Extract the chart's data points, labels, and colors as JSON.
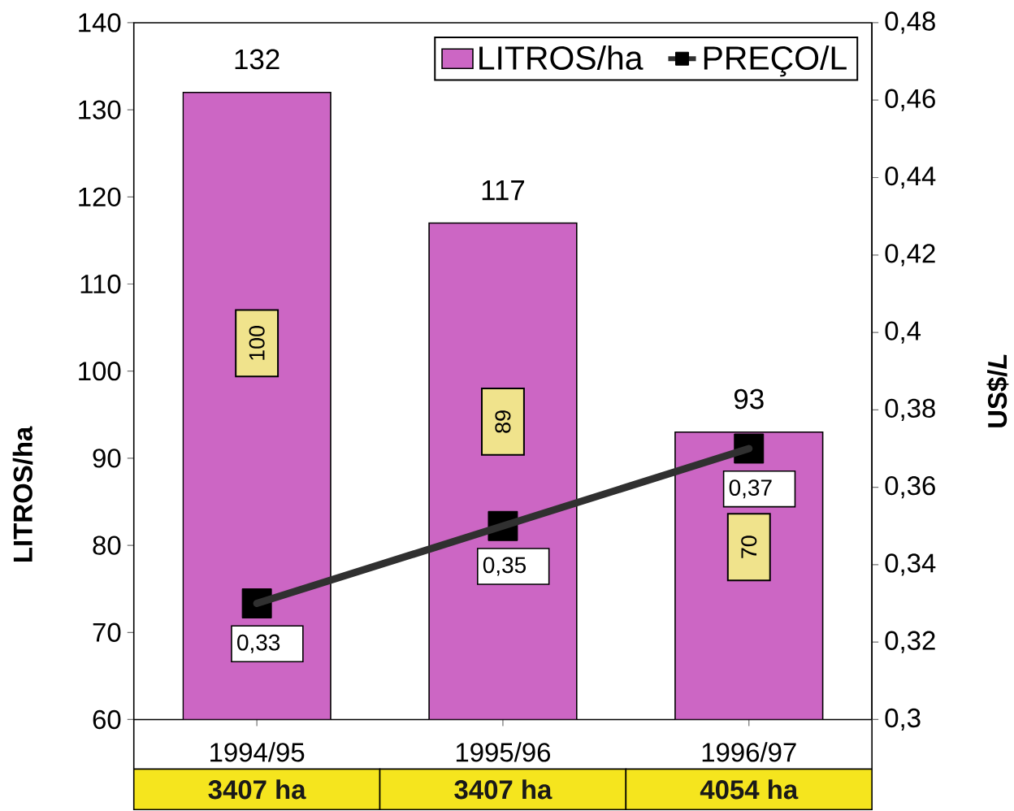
{
  "chart_data": {
    "type": "bar",
    "categories": [
      "1994/95",
      "1995/96",
      "1996/97"
    ],
    "series": [
      {
        "name": "LITROS/ha",
        "color": "#cc66c4",
        "values": [
          132,
          117,
          93
        ],
        "value_labels": [
          "132",
          "117",
          "93"
        ]
      },
      {
        "name": "PREÇO/L",
        "type": "line",
        "axis": "y2",
        "color": "#303030",
        "marker": "square",
        "values": [
          0.33,
          0.35,
          0.37
        ],
        "value_labels": [
          "0,33",
          "0,35",
          "0,37"
        ]
      }
    ],
    "ylabel": "LITROS/ha",
    "y2label": "US$/*L*",
    "ylim": [
      60,
      140
    ],
    "yticks": [
      60,
      70,
      80,
      90,
      100,
      110,
      120,
      130,
      140
    ],
    "y2lim": [
      0.3,
      0.48
    ],
    "y2ticks": [
      {
        "value": 0.3,
        "label": "0,3"
      },
      {
        "value": 0.32,
        "label": "0,32"
      },
      {
        "value": 0.34,
        "label": "0,34"
      },
      {
        "value": 0.36,
        "label": "0,36"
      },
      {
        "value": 0.38,
        "label": "0,38"
      },
      {
        "value": 0.4,
        "label": "0,4"
      },
      {
        "value": 0.42,
        "label": "0,42"
      },
      {
        "value": 0.44,
        "label": "0,44"
      },
      {
        "value": 0.46,
        "label": "0,46"
      },
      {
        "value": 0.48,
        "label": "0,48"
      }
    ],
    "legend": "top right",
    "annotations": [
      "100",
      "89",
      "70",
      "3407 ha",
      "3407 ha",
      "4054 ha"
    ]
  }
}
